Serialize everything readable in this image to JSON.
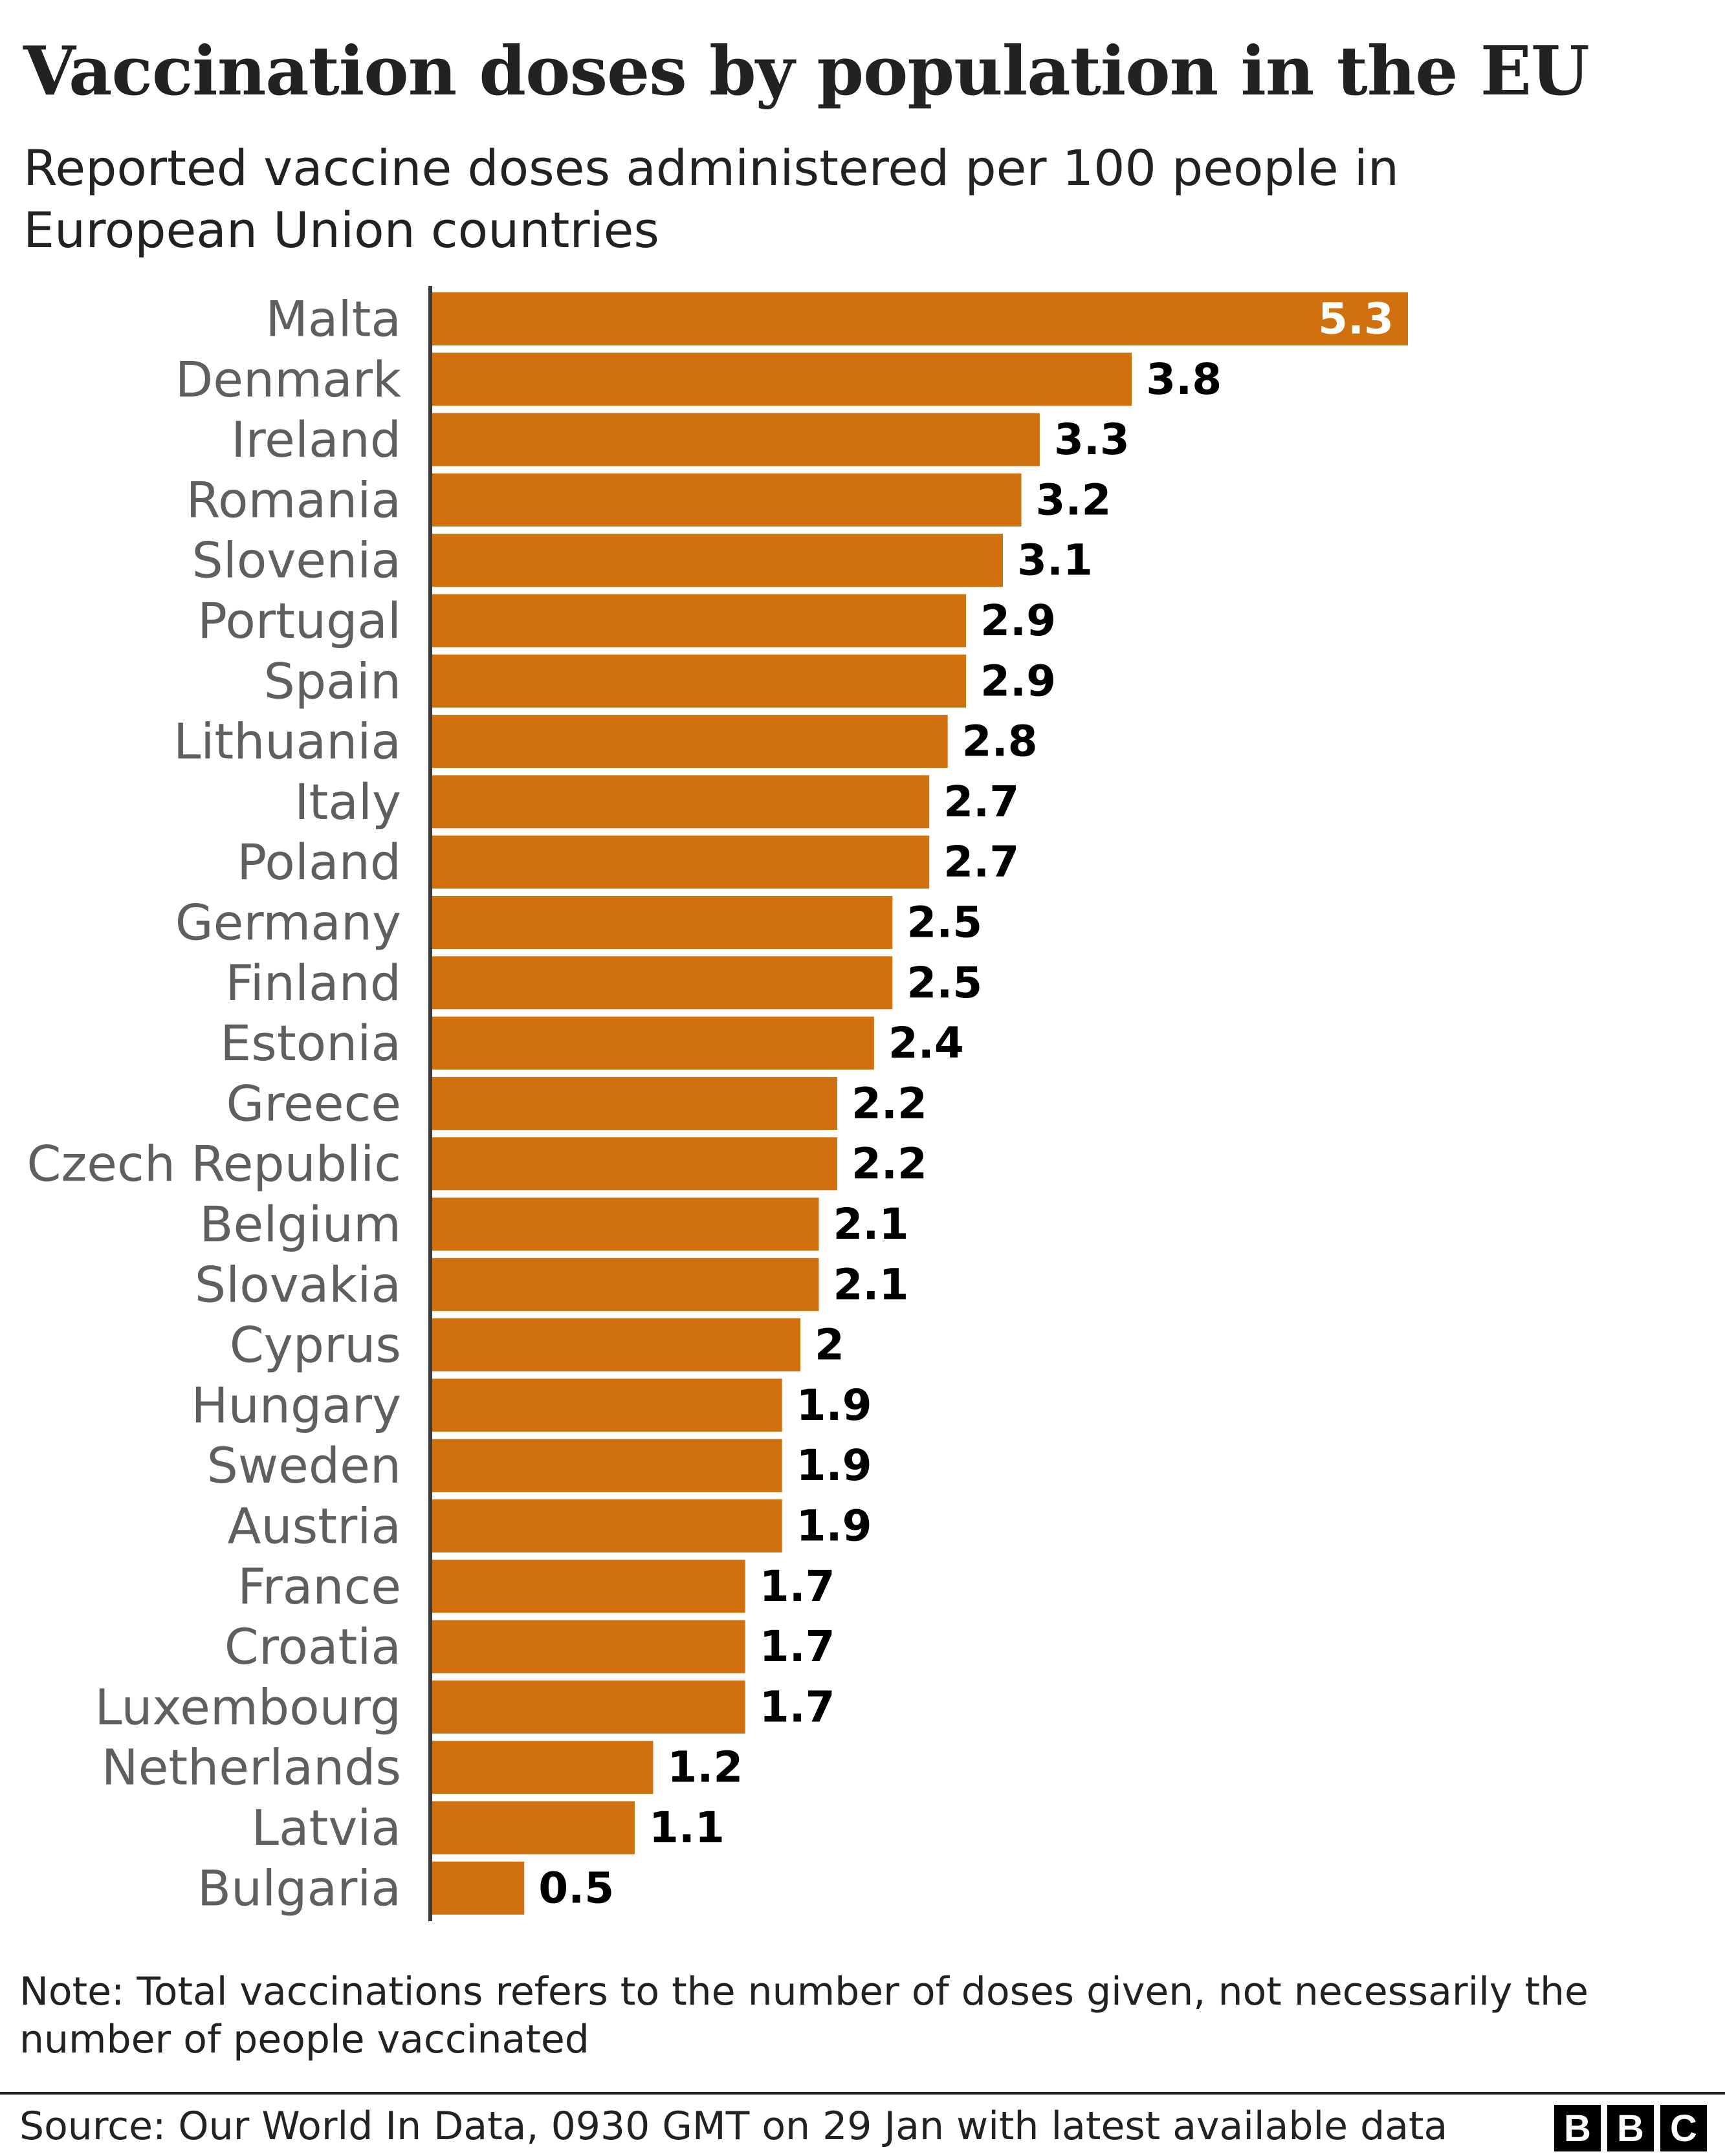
{
  "title": "Vaccination doses by population in the EU",
  "subtitle": "Reported vaccine doses administered per 100 people in European Union countries",
  "note": "Note: Total vaccinations refers to the number of doses given, not necessarily the number of people vaccinated",
  "source": "Source: Our World In Data, 0930 GMT on 29 Jan with latest available data",
  "logo": [
    "B",
    "B",
    "C"
  ],
  "colors": {
    "bar": "#d1700e",
    "label_inside": "#ffffff",
    "label_outside": "#000000",
    "axis": "#3a3a3a"
  },
  "chart_data": {
    "type": "bar",
    "orientation": "horizontal",
    "categories": [
      "Malta",
      "Denmark",
      "Ireland",
      "Romania",
      "Slovenia",
      "Portugal",
      "Spain",
      "Lithuania",
      "Italy",
      "Poland",
      "Germany",
      "Finland",
      "Estonia",
      "Greece",
      "Czech Republic",
      "Belgium",
      "Slovakia",
      "Cyprus",
      "Hungary",
      "Sweden",
      "Austria",
      "France",
      "Croatia",
      "Luxembourg",
      "Netherlands",
      "Latvia",
      "Bulgaria"
    ],
    "values": [
      5.3,
      3.8,
      3.3,
      3.2,
      3.1,
      2.9,
      2.9,
      2.8,
      2.7,
      2.7,
      2.5,
      2.5,
      2.4,
      2.2,
      2.2,
      2.1,
      2.1,
      2,
      1.9,
      1.9,
      1.9,
      1.7,
      1.7,
      1.7,
      1.2,
      1.1,
      0.5
    ],
    "value_labels": [
      "5.3",
      "3.8",
      "3.3",
      "3.2",
      "3.1",
      "2.9",
      "2.9",
      "2.8",
      "2.7",
      "2.7",
      "2.5",
      "2.5",
      "2.4",
      "2.2",
      "2.2",
      "2.1",
      "2.1",
      "2",
      "1.9",
      "1.9",
      "1.9",
      "1.7",
      "1.7",
      "1.7",
      "1.2",
      "1.1",
      "0.5"
    ],
    "xlim": [
      0,
      5.3
    ],
    "grid": false,
    "legend": "none"
  }
}
